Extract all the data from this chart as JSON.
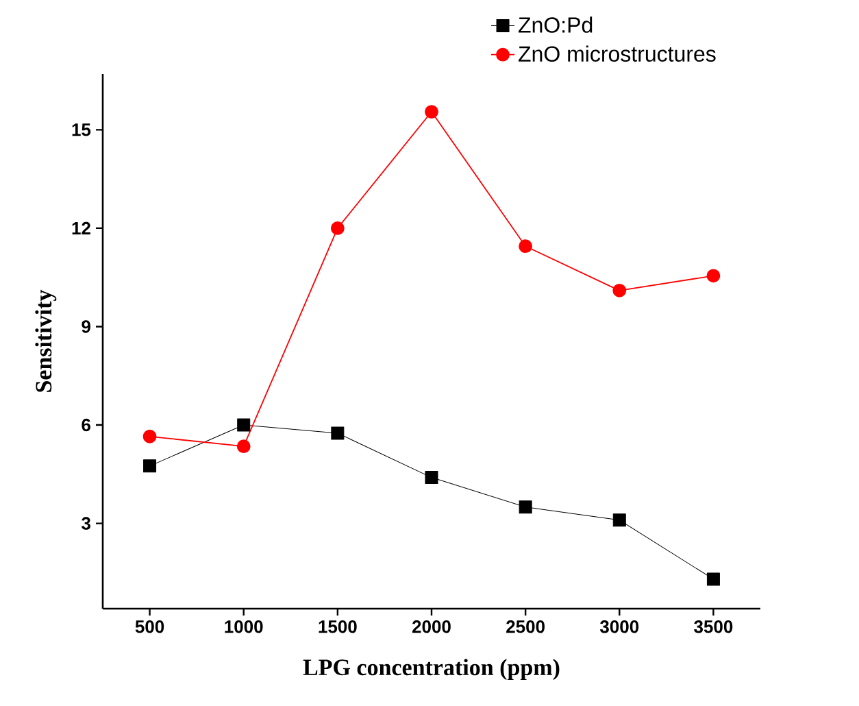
{
  "chart_data": {
    "type": "line",
    "xlabel": "LPG concentration (ppm)",
    "ylabel": "Sensitivity",
    "x": [
      500,
      1000,
      1500,
      2000,
      2500,
      3000,
      3500
    ],
    "series": [
      {
        "name": "ZnO:Pd",
        "color": "#000000",
        "marker": "square",
        "values": [
          4.75,
          6.0,
          5.75,
          4.4,
          3.5,
          3.1,
          1.3
        ]
      },
      {
        "name": "ZnO microstructures",
        "color": "#ff0000",
        "marker": "circle",
        "values": [
          5.65,
          5.35,
          12.0,
          15.55,
          11.45,
          10.1,
          10.55
        ]
      }
    ],
    "xlim": [
      250,
      3750
    ],
    "ylim": [
      0.4,
      16.7
    ],
    "xticks": [
      500,
      1000,
      1500,
      2000,
      2500,
      3000,
      3500
    ],
    "yticks": [
      3,
      6,
      9,
      12,
      15
    ],
    "grid": false,
    "legend": "top right"
  }
}
